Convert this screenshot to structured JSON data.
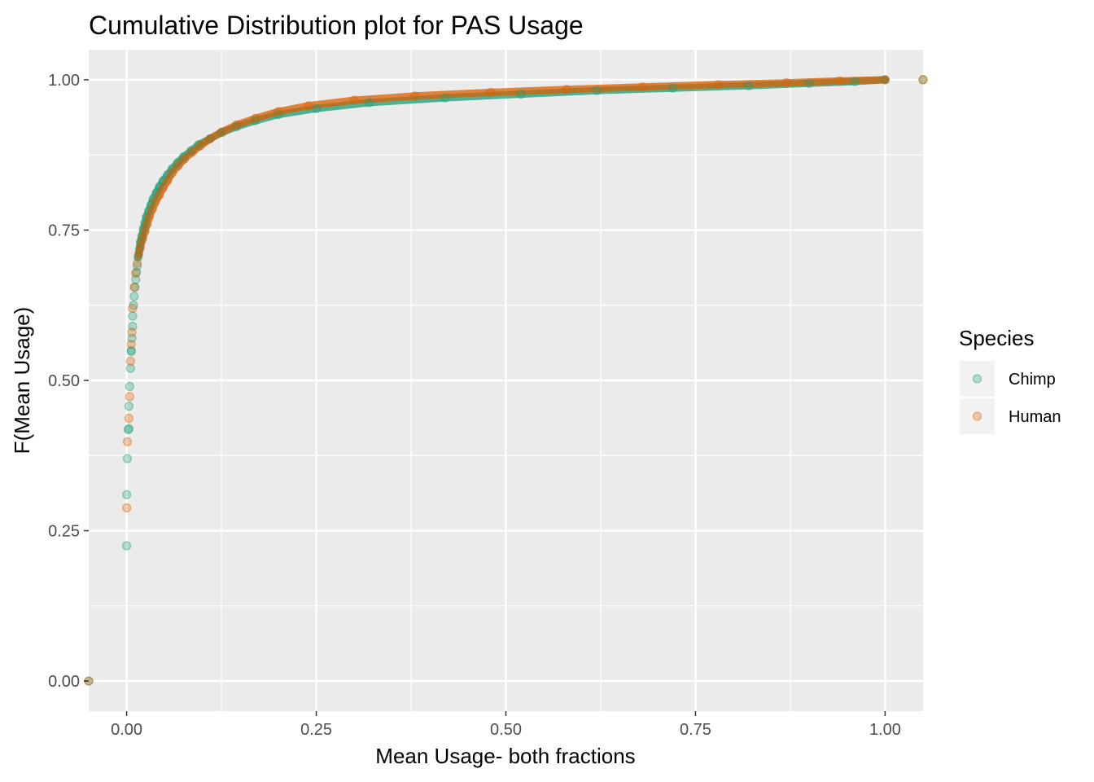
{
  "chart_data": {
    "type": "scatter",
    "title": "Cumulative Distribution plot for PAS Usage",
    "xlabel": "Mean Usage- both fractions",
    "ylabel": "F(Mean Usage)",
    "xlim": [
      -0.05,
      1.05
    ],
    "ylim": [
      -0.05,
      1.05
    ],
    "x_ticks": [
      "0.00",
      "0.25",
      "0.50",
      "0.75",
      "1.00"
    ],
    "y_ticks": [
      "0.00",
      "0.25",
      "0.50",
      "0.75",
      "1.00"
    ],
    "grid": true,
    "panel_background": "#ebebeb",
    "legend": {
      "title": "Species",
      "position": "right"
    },
    "series": [
      {
        "name": "Chimp",
        "color": "#1b9e77",
        "points": [
          [
            -0.05,
            0.0
          ],
          [
            0.0,
            0.225
          ],
          [
            0.0,
            0.31
          ],
          [
            0.001,
            0.37
          ],
          [
            0.002,
            0.418
          ],
          [
            0.003,
            0.42
          ],
          [
            0.003,
            0.457
          ],
          [
            0.004,
            0.49
          ],
          [
            0.005,
            0.52
          ],
          [
            0.006,
            0.548
          ],
          [
            0.006,
            0.55
          ],
          [
            0.007,
            0.57
          ],
          [
            0.008,
            0.59
          ],
          [
            0.008,
            0.607
          ],
          [
            0.009,
            0.625
          ],
          [
            0.01,
            0.64
          ],
          [
            0.011,
            0.655
          ],
          [
            0.012,
            0.668
          ],
          [
            0.013,
            0.68
          ],
          [
            0.014,
            0.69
          ],
          [
            0.015,
            0.705
          ],
          [
            0.017,
            0.718
          ],
          [
            0.018,
            0.73
          ],
          [
            0.02,
            0.74
          ],
          [
            0.022,
            0.752
          ],
          [
            0.024,
            0.762
          ],
          [
            0.026,
            0.772
          ],
          [
            0.029,
            0.782
          ],
          [
            0.032,
            0.792
          ],
          [
            0.035,
            0.802
          ],
          [
            0.039,
            0.812
          ],
          [
            0.043,
            0.822
          ],
          [
            0.048,
            0.832
          ],
          [
            0.054,
            0.842
          ],
          [
            0.06,
            0.852
          ],
          [
            0.067,
            0.862
          ],
          [
            0.075,
            0.872
          ],
          [
            0.085,
            0.882
          ],
          [
            0.095,
            0.892
          ],
          [
            0.11,
            0.902
          ],
          [
            0.125,
            0.912
          ],
          [
            0.145,
            0.922
          ],
          [
            0.17,
            0.932
          ],
          [
            0.2,
            0.942
          ],
          [
            0.25,
            0.952
          ],
          [
            0.32,
            0.962
          ],
          [
            0.42,
            0.97
          ],
          [
            0.52,
            0.976
          ],
          [
            0.62,
            0.982
          ],
          [
            0.72,
            0.986
          ],
          [
            0.82,
            0.99
          ],
          [
            0.9,
            0.994
          ],
          [
            0.96,
            0.997
          ],
          [
            1.0,
            1.0
          ],
          [
            1.05,
            1.0
          ]
        ]
      },
      {
        "name": "Human",
        "color": "#d95f02",
        "points": [
          [
            -0.05,
            0.0
          ],
          [
            0.0,
            0.288
          ],
          [
            0.001,
            0.398
          ],
          [
            0.003,
            0.437
          ],
          [
            0.004,
            0.473
          ],
          [
            0.005,
            0.532
          ],
          [
            0.006,
            0.56
          ],
          [
            0.007,
            0.58
          ],
          [
            0.008,
            0.62
          ],
          [
            0.01,
            0.655
          ],
          [
            0.012,
            0.678
          ],
          [
            0.014,
            0.695
          ],
          [
            0.016,
            0.71
          ],
          [
            0.018,
            0.722
          ],
          [
            0.021,
            0.735
          ],
          [
            0.024,
            0.748
          ],
          [
            0.027,
            0.76
          ],
          [
            0.03,
            0.772
          ],
          [
            0.034,
            0.785
          ],
          [
            0.038,
            0.797
          ],
          [
            0.043,
            0.808
          ],
          [
            0.048,
            0.82
          ],
          [
            0.054,
            0.832
          ],
          [
            0.06,
            0.845
          ],
          [
            0.068,
            0.857
          ],
          [
            0.076,
            0.868
          ],
          [
            0.086,
            0.879
          ],
          [
            0.097,
            0.89
          ],
          [
            0.11,
            0.902
          ],
          [
            0.125,
            0.913
          ],
          [
            0.145,
            0.925
          ],
          [
            0.17,
            0.936
          ],
          [
            0.2,
            0.947
          ],
          [
            0.24,
            0.957
          ],
          [
            0.3,
            0.966
          ],
          [
            0.38,
            0.973
          ],
          [
            0.48,
            0.979
          ],
          [
            0.58,
            0.984
          ],
          [
            0.68,
            0.988
          ],
          [
            0.78,
            0.992
          ],
          [
            0.87,
            0.995
          ],
          [
            0.94,
            0.998
          ],
          [
            1.0,
            1.0
          ],
          [
            1.05,
            1.0
          ]
        ]
      }
    ]
  }
}
